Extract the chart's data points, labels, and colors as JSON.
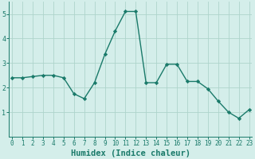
{
  "x": [
    0,
    1,
    2,
    3,
    4,
    5,
    6,
    7,
    8,
    9,
    10,
    11,
    12,
    13,
    14,
    15,
    16,
    17,
    18,
    19,
    20,
    21,
    22,
    23
  ],
  "y": [
    2.4,
    2.4,
    2.45,
    2.5,
    2.5,
    2.4,
    1.75,
    1.55,
    2.2,
    3.35,
    4.3,
    5.1,
    5.1,
    2.2,
    2.2,
    2.95,
    2.95,
    2.25,
    2.25,
    1.95,
    1.45,
    1.0,
    0.75,
    1.1
  ],
  "line_color": "#1a7a6a",
  "marker": "D",
  "marker_size": 2.2,
  "bg_color": "#d4eeea",
  "grid_color": "#aed4cc",
  "tick_color": "#1a7a6a",
  "xlabel": "Humidex (Indice chaleur)",
  "xlabel_color": "#1a7a6a",
  "xlabel_fontsize": 7.5,
  "ylim": [
    0.0,
    5.5
  ],
  "yticks": [
    1,
    2,
    3,
    4,
    5
  ],
  "xticks": [
    0,
    1,
    2,
    3,
    4,
    5,
    6,
    7,
    8,
    9,
    10,
    11,
    12,
    13,
    14,
    15,
    16,
    17,
    18,
    19,
    20,
    21,
    22,
    23
  ],
  "tick_fontsize": 5.5,
  "line_width": 1.0
}
